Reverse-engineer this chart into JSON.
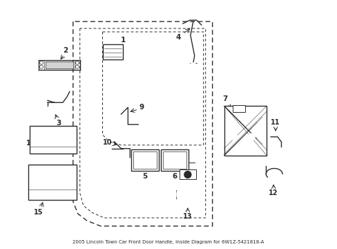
{
  "title": "2005 Lincoln Town Car Front Door Handle, Inside Diagram for 6W1Z-5421818-A",
  "bg_color": "#ffffff",
  "line_color": "#2a2a2a",
  "figsize": [
    4.89,
    3.6
  ],
  "dpi": 100,
  "xlim": [
    0,
    489
  ],
  "ylim": [
    0,
    360
  ]
}
